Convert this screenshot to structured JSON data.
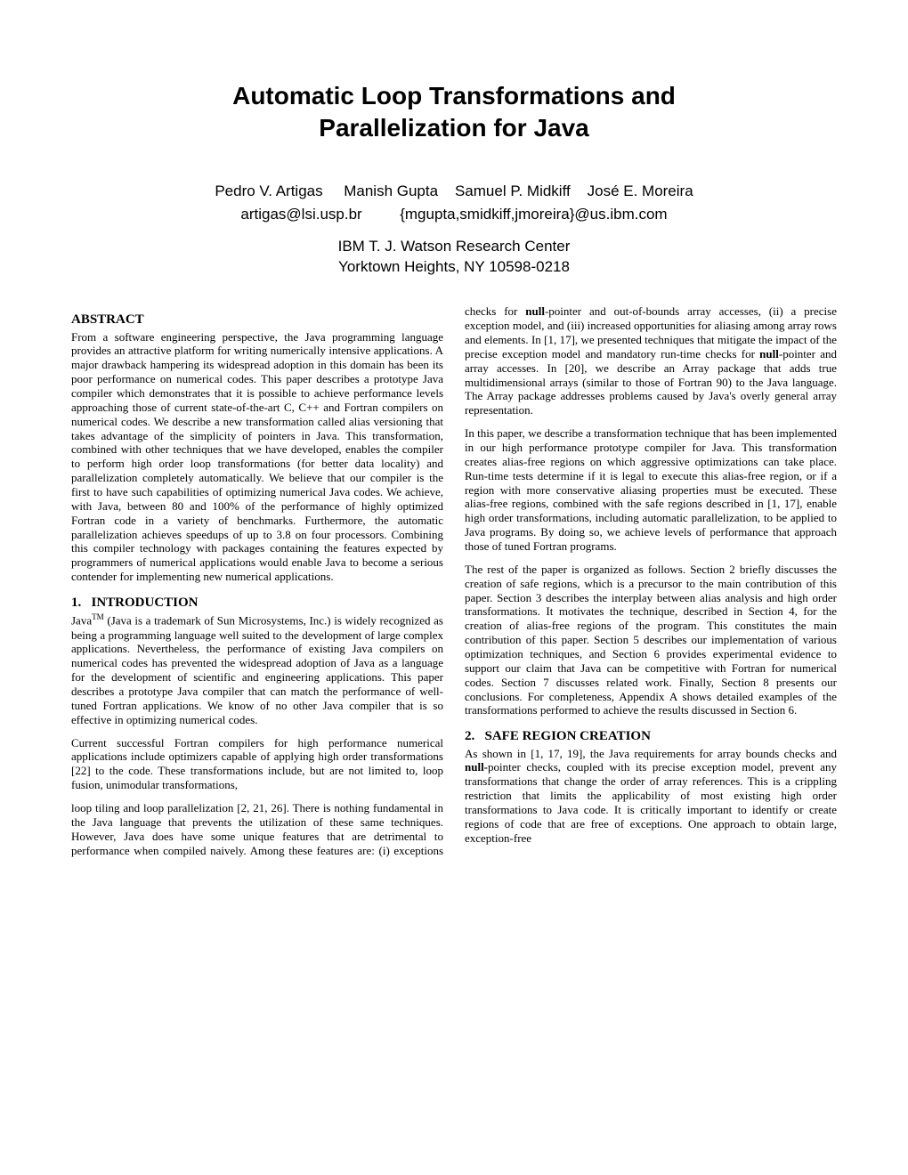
{
  "title_line1": "Automatic Loop Transformations and",
  "title_line2": "Parallelization for Java",
  "authors_names": "Pedro V. Artigas     Manish Gupta    Samuel P. Midkiff    José E. Moreira",
  "authors_emails": "artigas@lsi.usp.br         {mgupta,smidkiff,jmoreira}@us.ibm.com",
  "affiliation_line1": "IBM T. J. Watson Research Center",
  "affiliation_line2": "Yorktown Heights, NY 10598-0218",
  "abstract_heading": "ABSTRACT",
  "abstract_text": "From a software engineering perspective, the Java programming language provides an attractive platform for writing numerically intensive applications. A major drawback hampering its widespread adoption in this domain has been its poor performance on numerical codes. This paper describes a prototype Java compiler which demonstrates that it is possible to achieve performance levels approaching those of current state-of-the-art C, C++ and Fortran compilers on numerical codes. We describe a new transformation called alias versioning that takes advantage of the simplicity of pointers in Java. This transformation, combined with other techniques that we have developed, enables the compiler to perform high order loop transformations (for better data locality) and parallelization completely automatically. We believe that our compiler is the first to have such capabilities of optimizing numerical Java codes. We achieve, with Java, between 80 and 100% of the performance of highly optimized Fortran code in a variety of benchmarks. Furthermore, the automatic parallelization achieves speedups of up to 3.8 on four processors. Combining this compiler technology with packages containing the features expected by programmers of numerical applications would enable Java to become a serious contender for implementing new numerical applications.",
  "intro_heading": "1.   INTRODUCTION",
  "intro_p1_prefix": "Java",
  "intro_p1_sup": "TM",
  "intro_p1_rest": " (Java is a trademark of Sun Microsystems, Inc.) is widely recognized as being a programming language well suited to the development of large complex applications. Nevertheless, the performance of existing Java compilers on numerical codes has prevented the widespread adoption of Java as a language for the development of scientific and engineering applications. This paper describes a prototype Java compiler that can match the performance of well-tuned Fortran applications. We know of no other Java compiler that is so effective in optimizing numerical codes.",
  "intro_p2": "Current successful Fortran compilers for high performance numerical applications include optimizers capable of applying high order transformations [22] to the code. These transformations include, but are not limited to, loop fusion, unimodular transformations,",
  "rightcol_p1_part1": "loop tiling and loop parallelization [2, 21, 26]. There is nothing fundamental in the Java language that prevents the utilization of these same techniques. However, Java does have some unique features that are detrimental to performance when compiled naively. Among these features are: (i) exceptions checks for ",
  "rightcol_p1_bold1": "null",
  "rightcol_p1_part2": "-pointer and out-of-bounds array accesses, (ii) a precise exception model, and (iii) increased opportunities for aliasing among array rows and elements. In [1, 17], we presented techniques that mitigate the impact of the precise exception model and mandatory run-time checks for ",
  "rightcol_p1_bold2": "null",
  "rightcol_p1_part3": "-pointer and array accesses. In [20], we describe an Array package that adds true multidimensional arrays (similar to those of Fortran 90) to the Java language. The Array package addresses problems caused by Java's overly general array representation.",
  "rightcol_p2": "In this paper, we describe a transformation technique that has been implemented in our high performance prototype compiler for Java. This transformation creates alias-free regions on which aggressive optimizations can take place. Run-time tests determine if it is legal to execute this alias-free region, or if a region with more conservative aliasing properties must be executed. These alias-free regions, combined with the safe regions described in [1, 17], enable high order transformations, including automatic parallelization, to be applied to Java programs. By doing so, we achieve levels of performance that approach those of tuned Fortran programs.",
  "rightcol_p3": "The rest of the paper is organized as follows. Section 2 briefly discusses the creation of safe regions, which is a precursor to the main contribution of this paper. Section 3 describes the interplay between alias analysis and high order transformations. It motivates the technique, described in Section 4, for the creation of alias-free regions of the program. This constitutes the main contribution of this paper. Section 5 describes our implementation of various optimization techniques, and Section 6 provides experimental evidence to support our claim that Java can be competitive with Fortran for numerical codes. Section 7 discusses related work. Finally, Section 8 presents our conclusions. For completeness, Appendix A shows detailed examples of the transformations performed to achieve the results discussed in Section 6.",
  "safe_heading": "2.   SAFE REGION CREATION",
  "safe_p1_part1": "As shown in [1, 17, 19], the Java requirements for array bounds checks and ",
  "safe_p1_bold": "null-",
  "safe_p1_part2": "pointer checks, coupled with its precise exception model, prevent any transformations that change the order of array references. This is a crippling restriction that limits the applicability of most existing high order transformations to Java code. It is critically important to identify or create regions of code that are free of exceptions. One approach to obtain large, exception-free"
}
